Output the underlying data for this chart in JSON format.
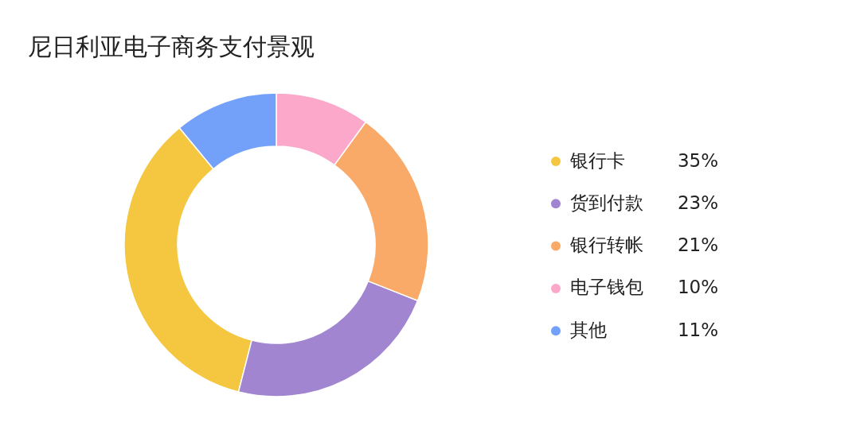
{
  "chart_data": {
    "type": "donut",
    "title": "尼日利亚电子商务支付景观",
    "categories": [
      "银行卡",
      "货到付款",
      "银行转帐",
      "电子钱包",
      "其他"
    ],
    "values": [
      35,
      23,
      21,
      10,
      11
    ],
    "colors": [
      "#f5c63f",
      "#a185d1",
      "#f9aa68",
      "#fba8cb",
      "#73a0f8"
    ],
    "value_labels": [
      "35%",
      "23%",
      "21%",
      "10%",
      "11%"
    ],
    "legend": "right"
  }
}
